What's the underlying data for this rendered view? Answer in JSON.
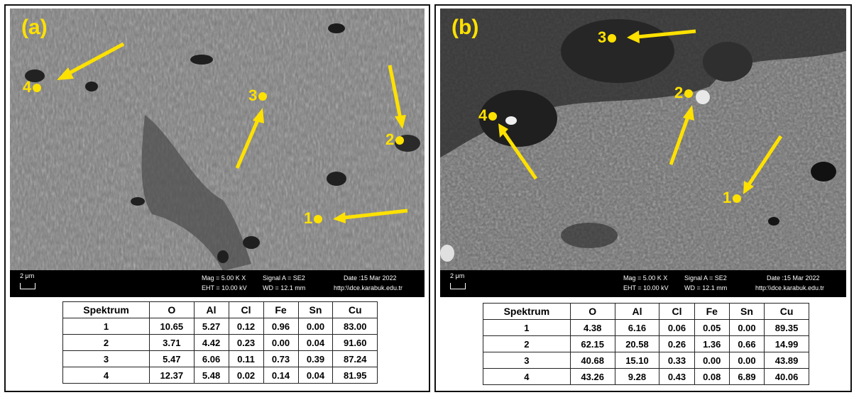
{
  "panels": [
    {
      "letter": "(a)",
      "markers": [
        "1",
        "2",
        "3",
        "4"
      ],
      "infobar": {
        "scale": "2 μm",
        "mag": "Mag =   5.00 K X",
        "eht": "EHT = 10.00 kV",
        "signal": "Signal A = SE2",
        "wd": "WD = 12.1 mm",
        "date": "Date :15 Mar 2022",
        "url": "http:\\\\dce.karabuk.edu.tr"
      },
      "table": {
        "headers": [
          "Spektrum",
          "O",
          "Al",
          "Cl",
          "Fe",
          "Sn",
          "Cu"
        ],
        "rows": [
          [
            "1",
            "10.65",
            "5.27",
            "0.12",
            "0.96",
            "0.00",
            "83.00"
          ],
          [
            "2",
            "3.71",
            "4.42",
            "0.23",
            "0.00",
            "0.04",
            "91.60"
          ],
          [
            "3",
            "5.47",
            "6.06",
            "0.11",
            "0.73",
            "0.39",
            "87.24"
          ],
          [
            "4",
            "12.37",
            "5.48",
            "0.02",
            "0.14",
            "0.04",
            "81.95"
          ]
        ]
      }
    },
    {
      "letter": "(b)",
      "markers": [
        "1",
        "2",
        "3",
        "4"
      ],
      "infobar": {
        "scale": "2 μm",
        "mag": "Mag =   5.00 K X",
        "eht": "EHT = 10.00 kV",
        "signal": "Signal A = SE2",
        "wd": "WD = 12.1 mm",
        "date": "Date :15 Mar 2022",
        "url": "http:\\\\dce.karabuk.edu.tr"
      },
      "table": {
        "headers": [
          "Spektrum",
          "O",
          "Al",
          "Cl",
          "Fe",
          "Sn",
          "Cu"
        ],
        "rows": [
          [
            "1",
            "4.38",
            "6.16",
            "0.06",
            "0.05",
            "0.00",
            "89.35"
          ],
          [
            "2",
            "62.15",
            "20.58",
            "0.26",
            "1.36",
            "0.66",
            "14.99"
          ],
          [
            "3",
            "40.68",
            "15.10",
            "0.33",
            "0.00",
            "0.00",
            "43.89"
          ],
          [
            "4",
            "43.26",
            "9.28",
            "0.43",
            "0.08",
            "6.89",
            "40.06"
          ]
        ]
      }
    }
  ],
  "colors": {
    "marker": "#ffe100",
    "frame": "#111111"
  }
}
